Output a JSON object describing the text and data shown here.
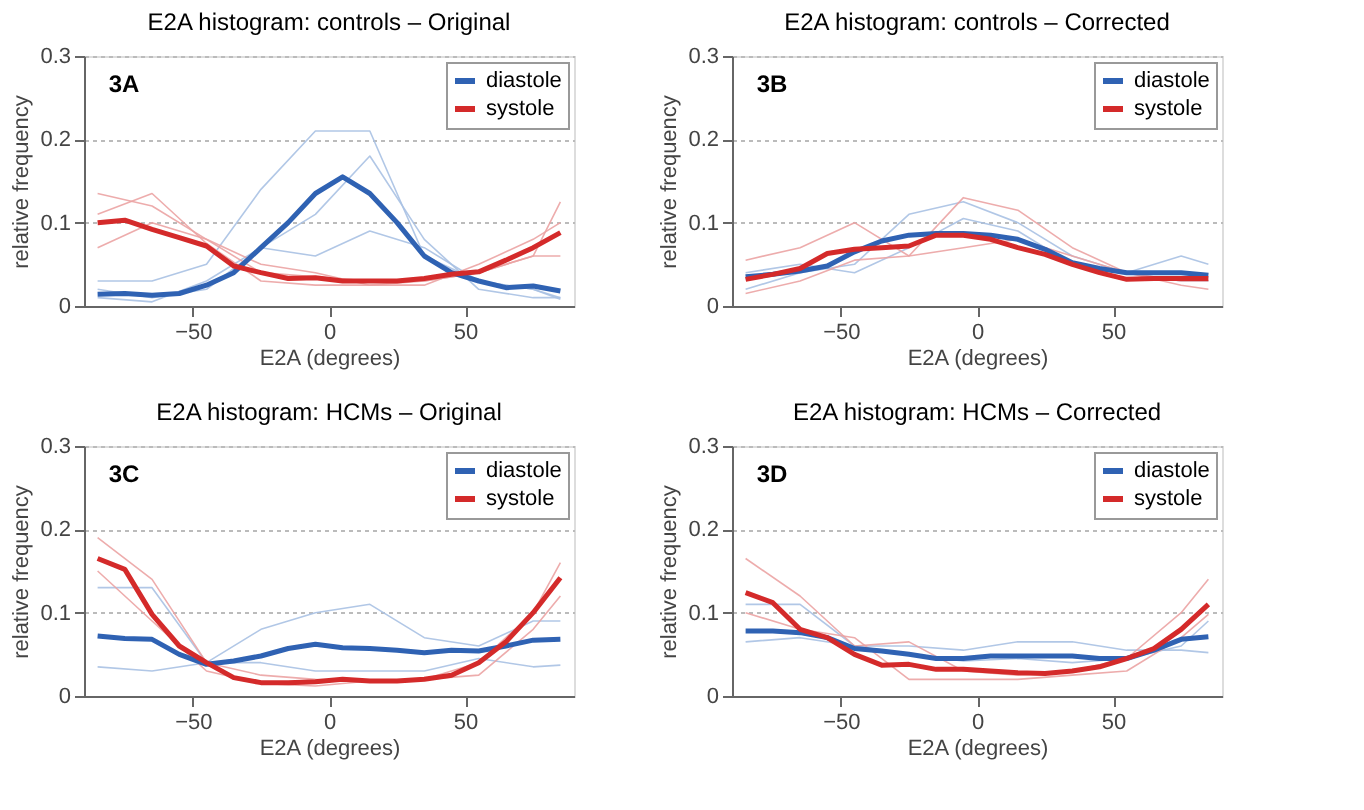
{
  "chart_data": [
    {
      "type": "line",
      "title": "E2A histogram: controls – Original",
      "xlabel": "E2A (degrees)",
      "ylabel": "relative frequency",
      "annotations": [
        "3A"
      ],
      "x": [
        -85,
        -75,
        -65,
        -55,
        -45,
        -35,
        -25,
        -15,
        -5,
        5,
        15,
        25,
        35,
        45,
        55,
        65,
        75,
        85
      ],
      "xlim": [
        -90,
        90
      ],
      "ylim": [
        0,
        0.3
      ],
      "xticks": [
        -50,
        0,
        50
      ],
      "yticks": [
        0,
        0.1,
        0.2,
        0.3
      ],
      "grid": "y",
      "legend": "top right",
      "line_style": "solid",
      "marker": "none",
      "series": [
        {
          "color": "#a9c1e3",
          "x": [
            -85,
            -65,
            -45,
            -25,
            -5,
            15,
            35,
            55,
            75,
            85
          ],
          "values": [
            0.03,
            0.03,
            0.05,
            0.14,
            0.21,
            0.21,
            0.06,
            0.03,
            0.02,
            0.01
          ]
        },
        {
          "color": "#a9c1e3",
          "x": [
            -85,
            -65,
            -45,
            -25,
            -5,
            15,
            35,
            55,
            75,
            85
          ],
          "values": [
            0.01,
            0.005,
            0.03,
            0.07,
            0.11,
            0.18,
            0.08,
            0.02,
            0.01,
            0.01
          ]
        },
        {
          "color": "#a9c1e3",
          "x": [
            -85,
            -65,
            -45,
            -25,
            -5,
            15,
            35,
            55,
            75,
            85
          ],
          "values": [
            0.02,
            0.01,
            0.02,
            0.07,
            0.06,
            0.09,
            0.07,
            0.03,
            0.02,
            0.008
          ]
        },
        {
          "color": "#eba3a3",
          "x": [
            -85,
            -65,
            -45,
            -25,
            -5,
            15,
            35,
            55,
            75,
            85
          ],
          "values": [
            0.135,
            0.12,
            0.08,
            0.04,
            0.035,
            0.03,
            0.03,
            0.04,
            0.06,
            0.125
          ]
        },
        {
          "color": "#eba3a3",
          "x": [
            -85,
            -65,
            -45,
            -25,
            -5,
            15,
            35,
            55,
            75,
            85
          ],
          "values": [
            0.07,
            0.1,
            0.08,
            0.05,
            0.04,
            0.025,
            0.025,
            0.05,
            0.08,
            0.1
          ]
        },
        {
          "color": "#eba3a3",
          "x": [
            -85,
            -65,
            -45,
            -25,
            -5,
            15,
            35,
            55,
            75,
            85
          ],
          "values": [
            0.11,
            0.135,
            0.075,
            0.03,
            0.025,
            0.025,
            0.03,
            0.04,
            0.06,
            0.06
          ]
        },
        {
          "name": "diastole",
          "color": "#2f62b3",
          "values": [
            0.014,
            0.015,
            0.013,
            0.015,
            0.025,
            0.04,
            0.07,
            0.1,
            0.135,
            0.155,
            0.135,
            0.1,
            0.06,
            0.04,
            0.03,
            0.022,
            0.024,
            0.018
          ]
        },
        {
          "name": "systole",
          "color": "#d42a2a",
          "values": [
            0.1,
            0.103,
            0.092,
            0.082,
            0.072,
            0.048,
            0.04,
            0.033,
            0.034,
            0.03,
            0.03,
            0.03,
            0.033,
            0.038,
            0.041,
            0.055,
            0.07,
            0.088
          ]
        }
      ]
    },
    {
      "type": "line",
      "title": "E2A histogram: controls – Corrected",
      "xlabel": "E2A (degrees)",
      "ylabel": "relative frequency",
      "annotations": [
        "3B"
      ],
      "x": [
        -85,
        -75,
        -65,
        -55,
        -45,
        -35,
        -25,
        -15,
        -5,
        5,
        15,
        25,
        35,
        45,
        55,
        65,
        75,
        85
      ],
      "xlim": [
        -90,
        90
      ],
      "ylim": [
        0,
        0.3
      ],
      "xticks": [
        -50,
        0,
        50
      ],
      "yticks": [
        0,
        0.1,
        0.2,
        0.3
      ],
      "grid": "y",
      "legend": "top right",
      "line_style": "solid",
      "marker": "none",
      "series": [
        {
          "color": "#a9c1e3",
          "x": [
            -85,
            -65,
            -45,
            -25,
            -5,
            15,
            35,
            55,
            75,
            85
          ],
          "values": [
            0.02,
            0.04,
            0.05,
            0.11,
            0.125,
            0.1,
            0.06,
            0.04,
            0.06,
            0.05
          ]
        },
        {
          "color": "#a9c1e3",
          "x": [
            -85,
            -65,
            -45,
            -25,
            -5,
            15,
            35,
            55,
            75,
            85
          ],
          "values": [
            0.04,
            0.05,
            0.04,
            0.07,
            0.105,
            0.09,
            0.05,
            0.04,
            0.03,
            0.03
          ]
        },
        {
          "color": "#eba3a3",
          "x": [
            -85,
            -65,
            -45,
            -25,
            -5,
            15,
            35,
            55,
            75,
            85
          ],
          "values": [
            0.055,
            0.07,
            0.1,
            0.06,
            0.13,
            0.115,
            0.07,
            0.04,
            0.03,
            0.03
          ]
        },
        {
          "color": "#eba3a3",
          "x": [
            -85,
            -65,
            -45,
            -25,
            -5,
            15,
            35,
            55,
            75,
            85
          ],
          "values": [
            0.015,
            0.03,
            0.055,
            0.06,
            0.07,
            0.08,
            0.06,
            0.04,
            0.025,
            0.02
          ]
        },
        {
          "name": "diastole",
          "color": "#2f62b3",
          "values": [
            0.035,
            0.038,
            0.042,
            0.048,
            0.065,
            0.078,
            0.085,
            0.087,
            0.087,
            0.085,
            0.08,
            0.068,
            0.052,
            0.045,
            0.04,
            0.04,
            0.04,
            0.037
          ]
        },
        {
          "name": "systole",
          "color": "#d42a2a",
          "values": [
            0.032,
            0.038,
            0.045,
            0.063,
            0.068,
            0.07,
            0.072,
            0.085,
            0.085,
            0.08,
            0.07,
            0.062,
            0.05,
            0.04,
            0.032,
            0.033,
            0.033,
            0.033
          ]
        }
      ]
    },
    {
      "type": "line",
      "title": "E2A histogram: HCMs – Original",
      "xlabel": "E2A (degrees)",
      "ylabel": "relative frequency",
      "annotations": [
        "3C"
      ],
      "x": [
        -85,
        -75,
        -65,
        -55,
        -45,
        -35,
        -25,
        -15,
        -5,
        5,
        15,
        25,
        35,
        45,
        55,
        65,
        75,
        85
      ],
      "xlim": [
        -90,
        90
      ],
      "ylim": [
        0,
        0.3
      ],
      "xticks": [
        -50,
        0,
        50
      ],
      "yticks": [
        0,
        0.1,
        0.2,
        0.3
      ],
      "grid": "y",
      "legend": "top right",
      "line_style": "solid",
      "marker": "none",
      "series": [
        {
          "color": "#a9c1e3",
          "x": [
            -85,
            -65,
            -45,
            -25,
            -5,
            15,
            35,
            55,
            75,
            85
          ],
          "values": [
            0.13,
            0.13,
            0.04,
            0.08,
            0.1,
            0.11,
            0.07,
            0.06,
            0.09,
            0.09
          ]
        },
        {
          "color": "#a9c1e3",
          "x": [
            -85,
            -65,
            -45,
            -25,
            -5,
            15,
            35,
            55,
            75,
            85
          ],
          "values": [
            0.035,
            0.03,
            0.04,
            0.04,
            0.03,
            0.03,
            0.03,
            0.045,
            0.035,
            0.037
          ]
        },
        {
          "color": "#eba3a3",
          "x": [
            -85,
            -65,
            -45,
            -25,
            -5,
            15,
            35,
            55,
            75,
            85
          ],
          "values": [
            0.19,
            0.14,
            0.04,
            0.025,
            0.02,
            0.018,
            0.02,
            0.04,
            0.1,
            0.16
          ]
        },
        {
          "color": "#eba3a3",
          "x": [
            -85,
            -65,
            -45,
            -25,
            -5,
            15,
            35,
            55,
            75,
            85
          ],
          "values": [
            0.15,
            0.09,
            0.03,
            0.015,
            0.012,
            0.018,
            0.02,
            0.025,
            0.08,
            0.12
          ]
        },
        {
          "name": "diastole",
          "color": "#2f62b3",
          "values": [
            0.072,
            0.069,
            0.068,
            0.05,
            0.038,
            0.042,
            0.048,
            0.057,
            0.062,
            0.058,
            0.057,
            0.055,
            0.052,
            0.055,
            0.054,
            0.06,
            0.067,
            0.068
          ]
        },
        {
          "name": "systole",
          "color": "#d42a2a",
          "values": [
            0.165,
            0.152,
            0.098,
            0.06,
            0.04,
            0.022,
            0.016,
            0.016,
            0.017,
            0.02,
            0.018,
            0.018,
            0.02,
            0.025,
            0.04,
            0.065,
            0.1,
            0.142
          ]
        }
      ]
    },
    {
      "type": "line",
      "title": "E2A histogram: HCMs – Corrected",
      "xlabel": "E2A (degrees)",
      "ylabel": "relative frequency",
      "annotations": [
        "3D"
      ],
      "x": [
        -85,
        -75,
        -65,
        -55,
        -45,
        -35,
        -25,
        -15,
        -5,
        5,
        15,
        25,
        35,
        45,
        55,
        65,
        75,
        85
      ],
      "xlim": [
        -90,
        90
      ],
      "ylim": [
        0,
        0.3
      ],
      "xticks": [
        -50,
        0,
        50
      ],
      "yticks": [
        0,
        0.1,
        0.2,
        0.3
      ],
      "grid": "y",
      "legend": "top right",
      "line_style": "solid",
      "marker": "none",
      "series": [
        {
          "color": "#a9c1e3",
          "x": [
            -85,
            -65,
            -45,
            -25,
            -5,
            15,
            35,
            55,
            75,
            85
          ],
          "values": [
            0.11,
            0.11,
            0.06,
            0.06,
            0.055,
            0.065,
            0.065,
            0.055,
            0.055,
            0.052
          ]
        },
        {
          "color": "#a9c1e3",
          "x": [
            -85,
            -65,
            -45,
            -25,
            -5,
            15,
            35,
            55,
            75,
            85
          ],
          "values": [
            0.065,
            0.07,
            0.06,
            0.05,
            0.042,
            0.045,
            0.04,
            0.045,
            0.06,
            0.09
          ]
        },
        {
          "color": "#eba3a3",
          "x": [
            -85,
            -65,
            -45,
            -25,
            -5,
            15,
            35,
            55,
            75,
            85
          ],
          "values": [
            0.165,
            0.12,
            0.06,
            0.065,
            0.03,
            0.025,
            0.03,
            0.045,
            0.1,
            0.14
          ]
        },
        {
          "color": "#eba3a3",
          "x": [
            -85,
            -65,
            -45,
            -25,
            -5,
            15,
            35,
            55,
            75,
            85
          ],
          "values": [
            0.1,
            0.08,
            0.07,
            0.02,
            0.02,
            0.02,
            0.025,
            0.03,
            0.07,
            0.098
          ]
        },
        {
          "name": "diastole",
          "color": "#2f62b3",
          "values": [
            0.078,
            0.078,
            0.076,
            0.07,
            0.057,
            0.054,
            0.05,
            0.045,
            0.045,
            0.048,
            0.048,
            0.048,
            0.048,
            0.045,
            0.045,
            0.055,
            0.068,
            0.071
          ]
        },
        {
          "name": "systole",
          "color": "#d42a2a",
          "values": [
            0.124,
            0.112,
            0.08,
            0.07,
            0.05,
            0.037,
            0.038,
            0.032,
            0.032,
            0.03,
            0.028,
            0.027,
            0.03,
            0.035,
            0.045,
            0.057,
            0.08,
            0.11
          ]
        }
      ]
    }
  ]
}
